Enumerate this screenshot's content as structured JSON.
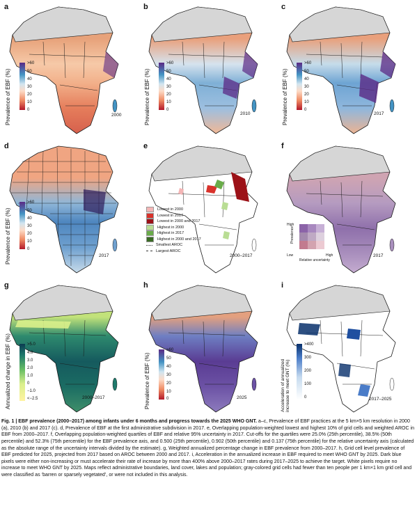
{
  "panels": {
    "a": {
      "label": "a",
      "year": "2000"
    },
    "b": {
      "label": "b",
      "year": "2010"
    },
    "c": {
      "label": "c",
      "year": "2017"
    },
    "d": {
      "label": "d",
      "year": "2017"
    },
    "e": {
      "label": "e",
      "year": "2000–2017"
    },
    "f": {
      "label": "f",
      "year": "2017"
    },
    "g": {
      "label": "g",
      "year": "2000–2017"
    },
    "h": {
      "label": "h",
      "year": "2025"
    },
    "i": {
      "label": "i",
      "year": "2017–2025"
    }
  },
  "colorbars": {
    "prevalence": {
      "title": "Prevalence of EBF (%)",
      "ticks": [
        ">60",
        "50",
        "40",
        "30",
        "20",
        "10",
        "0"
      ]
    },
    "change": {
      "title": "Annualized change in EBF (%)",
      "ticks": [
        ">5.0",
        "4.0",
        "3.0",
        "2.0",
        "1.0",
        "0",
        "−1.0",
        "<−2.5"
      ]
    },
    "acceleration": {
      "title": "Acceleration of annualized increase to meet GNT (%)",
      "ticks": [
        ">400",
        "300",
        "200",
        "100",
        "0"
      ]
    }
  },
  "legend_e": {
    "items": [
      {
        "label": "Lowest in 2000",
        "color": "#f4b6b6"
      },
      {
        "label": "Lowest in 2017",
        "color": "#d9322b"
      },
      {
        "label": "Lowest in 2000 and 2017",
        "color": "#9c1218"
      },
      {
        "label": "Highest in 2000",
        "color": "#b9dd94"
      },
      {
        "label": "Highest in 2017",
        "color": "#6aac4a"
      },
      {
        "label": "Highest in 2000 and 2017",
        "color": "#3a6a24"
      }
    ],
    "line_items": [
      {
        "label": "Smallest AROC"
      },
      {
        "label": "Largest AROC"
      }
    ]
  },
  "legend_f": {
    "y_axis": "Prevalence",
    "high": "High",
    "low": "Low",
    "x_axis": "Relative uncertainty",
    "x_high": "High",
    "grid": [
      [
        "#8b63a8",
        "#a888bf",
        "#c7b0d6"
      ],
      [
        "#a48aae",
        "#bfa9c4",
        "#ddd0de"
      ],
      [
        "#c27b8f",
        "#d3a3af",
        "#eccad2"
      ]
    ]
  },
  "caption": {
    "heading": "Fig. 1 | EBF prevalence (2000–2017) among infants under 6 months and progress towards the 2025 WHO GNT.",
    "body": "a–c, Prevalence of EBF practices at the 5 km×5 km resolution in 2000 (a), 2010 (b) and 2017 (c). d, Prevalence of EBF at the first administrative subdivision in 2017. e, Overlapping population-weighted lowest and highest 10% of grid cells and weighted AROC in EBF from 2000–2017. f, Overlapping population-weighted quartiles of EBF and relative 95% uncertainty in 2017. Cut-offs for the quartiles were 25.0% (25th percentile), 38.5% (50th percentile) and 52.3% (75th percentile) for the EBF prevalence axis, and 0.500 (25th percentile), 0.902 (50th percentile) and 0.137 (75th percentile) for the relative uncertainty axis (calculated as the absolute range of the uncertainty intervals divided by the estimate). g, Weighted annualized percentage change in EBF prevalence from 2000–2017. h, Grid cell level prevalence of EBF predicted for 2025, projected from 2017 based on AROC between 2000 and 2017. i, Acceleration in the annualized increase in EBF required to meet WHO GNT by 2025. Dark blue pixels were either non-increasing or must accelerate their rate of increase by more than 400% above 2000–2017 rates during 2017–2025 to achieve the target. White pixels require no increase to meet WHO GNT by 2025. Maps reflect administrative boundaries, land cover, lakes and population; gray-colored grid cells had fewer than ten people per 1 km×1 km grid cell and were classified as ‘barren or sparsely vegetated’, or were not included in this analysis."
  },
  "colors": {
    "land_gray": "#d6d6d6",
    "border": "#1a1a1a"
  }
}
